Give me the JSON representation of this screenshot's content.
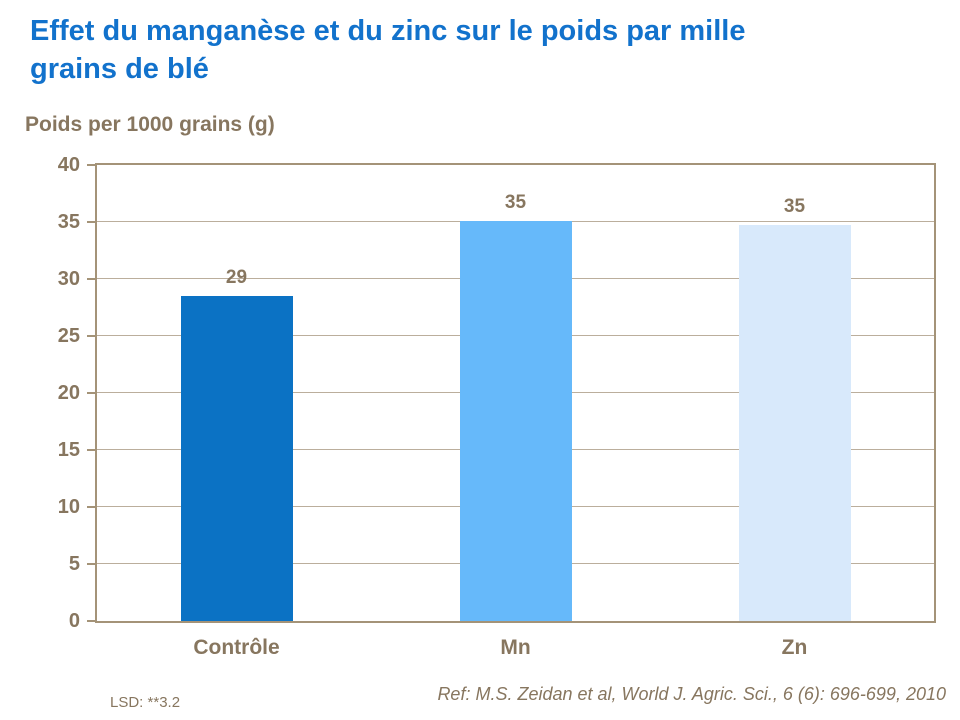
{
  "header": {
    "title_line1": "Effet du manganèse et du zinc sur le poids par mille",
    "title_line2": "grains de blé"
  },
  "chart_data": {
    "type": "bar",
    "title": "Effet du manganèse et du zinc sur le poids par mille grains de blé",
    "ylabel": "Poids per 1000 grains (g)",
    "xlabel": "",
    "categories": [
      "Contrôle",
      "Mn",
      "Zn"
    ],
    "values": [
      29,
      35,
      35
    ],
    "data_labels": [
      "29",
      "35",
      "35"
    ],
    "drawn_values": [
      28.5,
      35.1,
      34.7
    ],
    "bar_colors": [
      "#0b72c4",
      "#66b9fa",
      "#d8e9fb"
    ],
    "ylim": [
      0,
      40
    ],
    "yticks": [
      0,
      5,
      10,
      15,
      20,
      25,
      30,
      35,
      40
    ],
    "grid": "horizontal",
    "legend": "none"
  },
  "footer": {
    "lsd": "LSD: **3.2",
    "reference": "Ref: M.S. Zeidan et al, World J. Agric. Sci., 6 (6): 696-699, 2010"
  },
  "colors": {
    "title_blue": "#1272cc",
    "text_taupe": "#87765f",
    "gridline": "#bbae9c",
    "axis_border": "#a49378"
  }
}
